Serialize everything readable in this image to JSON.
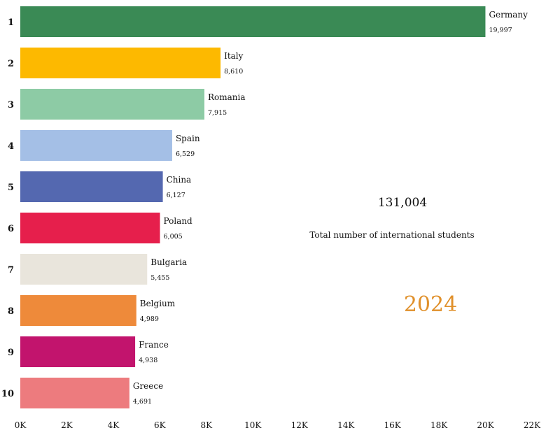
{
  "chart_data": {
    "type": "bar",
    "orientation": "horizontal",
    "title": "",
    "xlabel": "",
    "ylabel": "",
    "xlim": [
      0,
      22000
    ],
    "ticks": [
      0,
      2000,
      4000,
      6000,
      8000,
      10000,
      12000,
      14000,
      16000,
      18000,
      20000,
      22000
    ],
    "tick_labels": [
      "0K",
      "2K",
      "4K",
      "6K",
      "8K",
      "10K",
      "12K",
      "14K",
      "16K",
      "18K",
      "20K",
      "22K"
    ],
    "ranks": [
      "1",
      "2",
      "3",
      "4",
      "5",
      "6",
      "7",
      "8",
      "9",
      "10"
    ],
    "categories": [
      "Germany",
      "Italy",
      "Romania",
      "Spain",
      "China",
      "Poland",
      "Bulgaria",
      "Belgium",
      "France",
      "Greece"
    ],
    "values": [
      19997,
      8610,
      7915,
      6529,
      6127,
      6005,
      5455,
      4989,
      4938,
      4691
    ],
    "value_labels": [
      "19,997",
      "8,610",
      "7,915",
      "6,529",
      "6,127",
      "6,005",
      "5,455",
      "4,989",
      "4,938",
      "4,691"
    ],
    "colors": [
      "#3a8a55",
      "#fdb900",
      "#8dcba5",
      "#a4bfe6",
      "#5468b0",
      "#e61f4c",
      "#e9e5dc",
      "#ee8a3a",
      "#c2146d",
      "#ed7b7e"
    ],
    "grid": false
  },
  "summary": {
    "total_value": "131,004",
    "total_label": "Total number of international students",
    "year": "2024"
  }
}
